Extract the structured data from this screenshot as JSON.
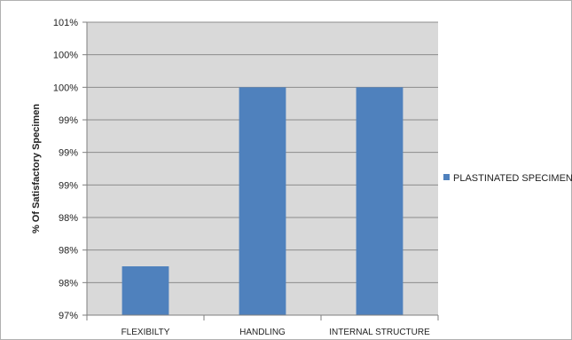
{
  "chart_data": {
    "type": "bar",
    "title": "",
    "xlabel": "",
    "ylabel": "% Of Satisfactory Specimen",
    "categories": [
      "FLEXIBILTY",
      "HANDLING",
      "INTERNAL STRUCTURE"
    ],
    "series": [
      {
        "name": "PLASTINATED SPECIMEN",
        "values": [
          97.6,
          99.8,
          99.8
        ],
        "color": "#4F81BD"
      }
    ],
    "ylim": [
      97.0,
      100.6
    ],
    "yticks": [
      97.0,
      97.4,
      97.8,
      98.2,
      98.6,
      99.0,
      99.4,
      99.8,
      100.2,
      100.6
    ],
    "ytick_labels": [
      "97%",
      "98%",
      "98%",
      "98%",
      "99%",
      "99%",
      "99%",
      "100%",
      "100%",
      "101%"
    ],
    "grid": true,
    "legend_position": "right",
    "plot_background": "#D9D9D9",
    "gridline_color": "#8C8C8C"
  }
}
